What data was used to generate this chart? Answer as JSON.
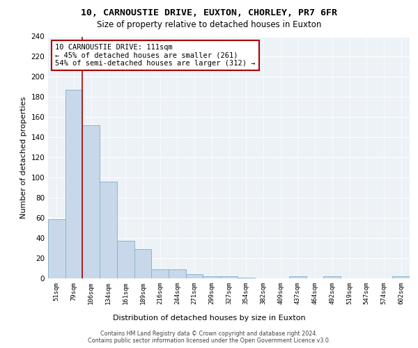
{
  "title1": "10, CARNOUSTIE DRIVE, EUXTON, CHORLEY, PR7 6FR",
  "title2": "Size of property relative to detached houses in Euxton",
  "xlabel": "Distribution of detached houses by size in Euxton",
  "ylabel": "Number of detached properties",
  "categories": [
    "51sqm",
    "79sqm",
    "106sqm",
    "134sqm",
    "161sqm",
    "189sqm",
    "216sqm",
    "244sqm",
    "271sqm",
    "299sqm",
    "327sqm",
    "354sqm",
    "382sqm",
    "409sqm",
    "437sqm",
    "464sqm",
    "492sqm",
    "519sqm",
    "547sqm",
    "574sqm",
    "602sqm"
  ],
  "values": [
    59,
    187,
    152,
    96,
    37,
    29,
    9,
    9,
    4,
    2,
    2,
    1,
    0,
    0,
    2,
    0,
    2,
    0,
    0,
    0,
    2
  ],
  "bar_color": "#c8d8ea",
  "bar_edge_color": "#8ab4cc",
  "bar_linewidth": 0.7,
  "property_bin_index": 2,
  "red_line_color": "#aa0000",
  "annotation_line1": "10 CARNOUSTIE DRIVE: 111sqm",
  "annotation_line2": "← 45% of detached houses are smaller (261)",
  "annotation_line3": "54% of semi-detached houses are larger (312) →",
  "annotation_box_color": "white",
  "annotation_box_edge": "#aa0000",
  "ylim": [
    0,
    240
  ],
  "yticks": [
    0,
    20,
    40,
    60,
    80,
    100,
    120,
    140,
    160,
    180,
    200,
    220,
    240
  ],
  "background_color": "#edf2f7",
  "grid_color": "white",
  "footer": "Contains HM Land Registry data © Crown copyright and database right 2024.\nContains public sector information licensed under the Open Government Licence v3.0.",
  "title1_fontsize": 9.5,
  "title2_fontsize": 8.5,
  "xlabel_fontsize": 8,
  "ylabel_fontsize": 8,
  "annotation_fontsize": 7.5,
  "footer_fontsize": 5.8
}
